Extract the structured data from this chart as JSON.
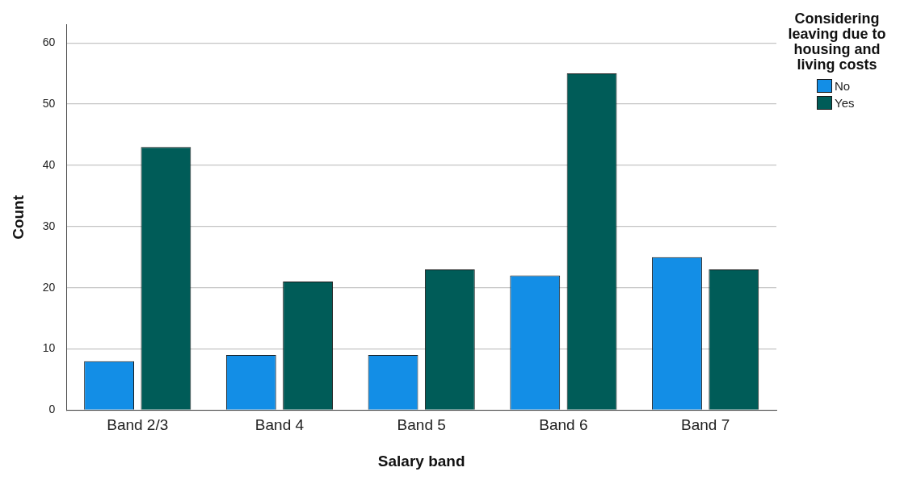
{
  "chart_data": {
    "type": "bar",
    "xlabel": "Salary band",
    "ylabel": "Count",
    "legend_title": "Considering leaving due to housing and living costs",
    "categories": [
      "Band 2/3",
      "Band 4",
      "Band 5",
      "Band 6",
      "Band 7"
    ],
    "series": [
      {
        "name": "No",
        "color": "#138ee6",
        "values": [
          8,
          9,
          9,
          22,
          25
        ]
      },
      {
        "name": "Yes",
        "color": "#005c58",
        "values": [
          43,
          21,
          23,
          55,
          23
        ]
      }
    ],
    "ylim": [
      0,
      63
    ],
    "yticks": [
      0,
      10,
      20,
      30,
      40,
      50,
      60
    ],
    "grid": "y",
    "legend": "top right"
  }
}
